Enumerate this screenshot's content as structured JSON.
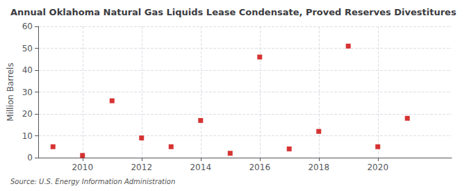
{
  "chart_data": {
    "type": "scatter",
    "title": "Annual Oklahoma Natural Gas Liquids Lease Condensate, Proved Reserves Divestitures",
    "y_label": "Million Barrels",
    "annotation": "Source: U.S. Energy Information Administration",
    "x": [
      2009,
      2010,
      2011,
      2012,
      2013,
      2014,
      2015,
      2016,
      2017,
      2018,
      2019,
      2020,
      2021
    ],
    "values": [
      5,
      1,
      26,
      9,
      5,
      17,
      2,
      46,
      4,
      12,
      51,
      5,
      18
    ],
    "color": "#cc0000",
    "marker": "square",
    "xlim": [
      2008.5,
      2022.5
    ],
    "xticks": [
      2010,
      2012,
      2014,
      2016,
      2018,
      2020
    ],
    "ylim": [
      0,
      60
    ],
    "yticks": [
      0,
      10,
      20,
      30,
      40,
      50,
      60
    ],
    "grid": true
  }
}
